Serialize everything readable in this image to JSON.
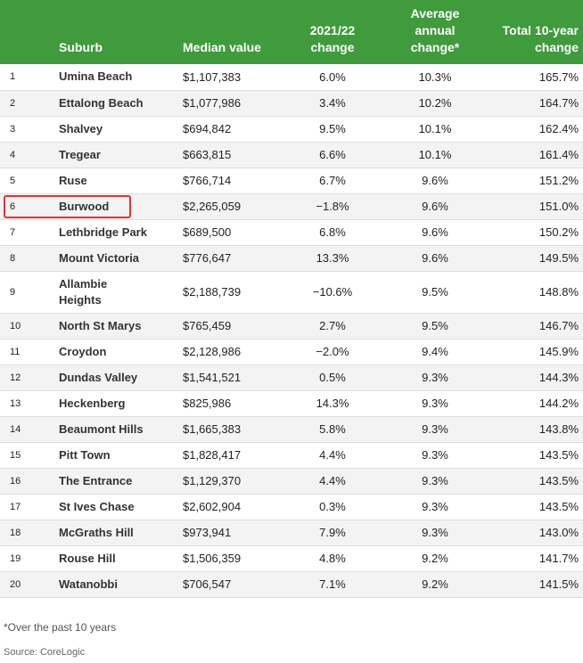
{
  "headers": {
    "rank": "",
    "suburb": "Suburb",
    "median": "Median value",
    "change": "2021/22 change",
    "avg_line1": "Average",
    "avg_line2": "annual",
    "avg_line3": "change*",
    "total": "Total 10-year change"
  },
  "rows": [
    {
      "rank": "1",
      "suburb": "Umina Beach",
      "median": "$1,107,383",
      "change": "6.0%",
      "avg": "10.3%",
      "total": "165.7%"
    },
    {
      "rank": "2",
      "suburb": "Ettalong Beach",
      "median": "$1,077,986",
      "change": "3.4%",
      "avg": "10.2%",
      "total": "164.7%"
    },
    {
      "rank": "3",
      "suburb": "Shalvey",
      "median": "$694,842",
      "change": "9.5%",
      "avg": "10.1%",
      "total": "162.4%"
    },
    {
      "rank": "4",
      "suburb": "Tregear",
      "median": "$663,815",
      "change": "6.6%",
      "avg": "10.1%",
      "total": "161.4%"
    },
    {
      "rank": "5",
      "suburb": "Ruse",
      "median": "$766,714",
      "change": "6.7%",
      "avg": "9.6%",
      "total": "151.2%"
    },
    {
      "rank": "6",
      "suburb": "Burwood",
      "median": "$2,265,059",
      "change": "−1.8%",
      "avg": "9.6%",
      "total": "151.0%"
    },
    {
      "rank": "7",
      "suburb": "Lethbridge Park",
      "median": "$689,500",
      "change": "6.8%",
      "avg": "9.6%",
      "total": "150.2%"
    },
    {
      "rank": "8",
      "suburb": "Mount Victoria",
      "median": "$776,647",
      "change": "13.3%",
      "avg": "9.6%",
      "total": "149.5%"
    },
    {
      "rank": "9",
      "suburb": "Allambie Heights",
      "median": "$2,188,739",
      "change": "−10.6%",
      "avg": "9.5%",
      "total": "148.8%"
    },
    {
      "rank": "10",
      "suburb": "North St Marys",
      "median": "$765,459",
      "change": "2.7%",
      "avg": "9.5%",
      "total": "146.7%"
    },
    {
      "rank": "11",
      "suburb": "Croydon",
      "median": "$2,128,986",
      "change": "−2.0%",
      "avg": "9.4%",
      "total": "145.9%"
    },
    {
      "rank": "12",
      "suburb": "Dundas Valley",
      "median": "$1,541,521",
      "change": "0.5%",
      "avg": "9.3%",
      "total": "144.3%"
    },
    {
      "rank": "13",
      "suburb": "Heckenberg",
      "median": "$825,986",
      "change": "14.3%",
      "avg": "9.3%",
      "total": "144.2%"
    },
    {
      "rank": "14",
      "suburb": "Beaumont Hills",
      "median": "$1,665,383",
      "change": "5.8%",
      "avg": "9.3%",
      "total": "143.8%"
    },
    {
      "rank": "15",
      "suburb": "Pitt Town",
      "median": "$1,828,417",
      "change": "4.4%",
      "avg": "9.3%",
      "total": "143.5%"
    },
    {
      "rank": "16",
      "suburb": "The Entrance",
      "median": "$1,129,370",
      "change": "4.4%",
      "avg": "9.3%",
      "total": "143.5%"
    },
    {
      "rank": "17",
      "suburb": "St Ives Chase",
      "median": "$2,602,904",
      "change": "0.3%",
      "avg": "9.3%",
      "total": "143.5%"
    },
    {
      "rank": "18",
      "suburb": "McGraths Hill",
      "median": "$973,941",
      "change": "7.9%",
      "avg": "9.3%",
      "total": "143.0%"
    },
    {
      "rank": "19",
      "suburb": "Rouse Hill",
      "median": "$1,506,359",
      "change": "4.8%",
      "avg": "9.2%",
      "total": "141.7%"
    },
    {
      "rank": "20",
      "suburb": "Watanobbi",
      "median": "$706,547",
      "change": "7.1%",
      "avg": "9.2%",
      "total": "141.5%"
    }
  ],
  "highlighted_suburb": "Burwood",
  "footnote": "*Over the past 10 years",
  "source": "Source: CoreLogic",
  "colors": {
    "header_bg": "#3f9b3c",
    "highlight_border": "#e8312f"
  }
}
